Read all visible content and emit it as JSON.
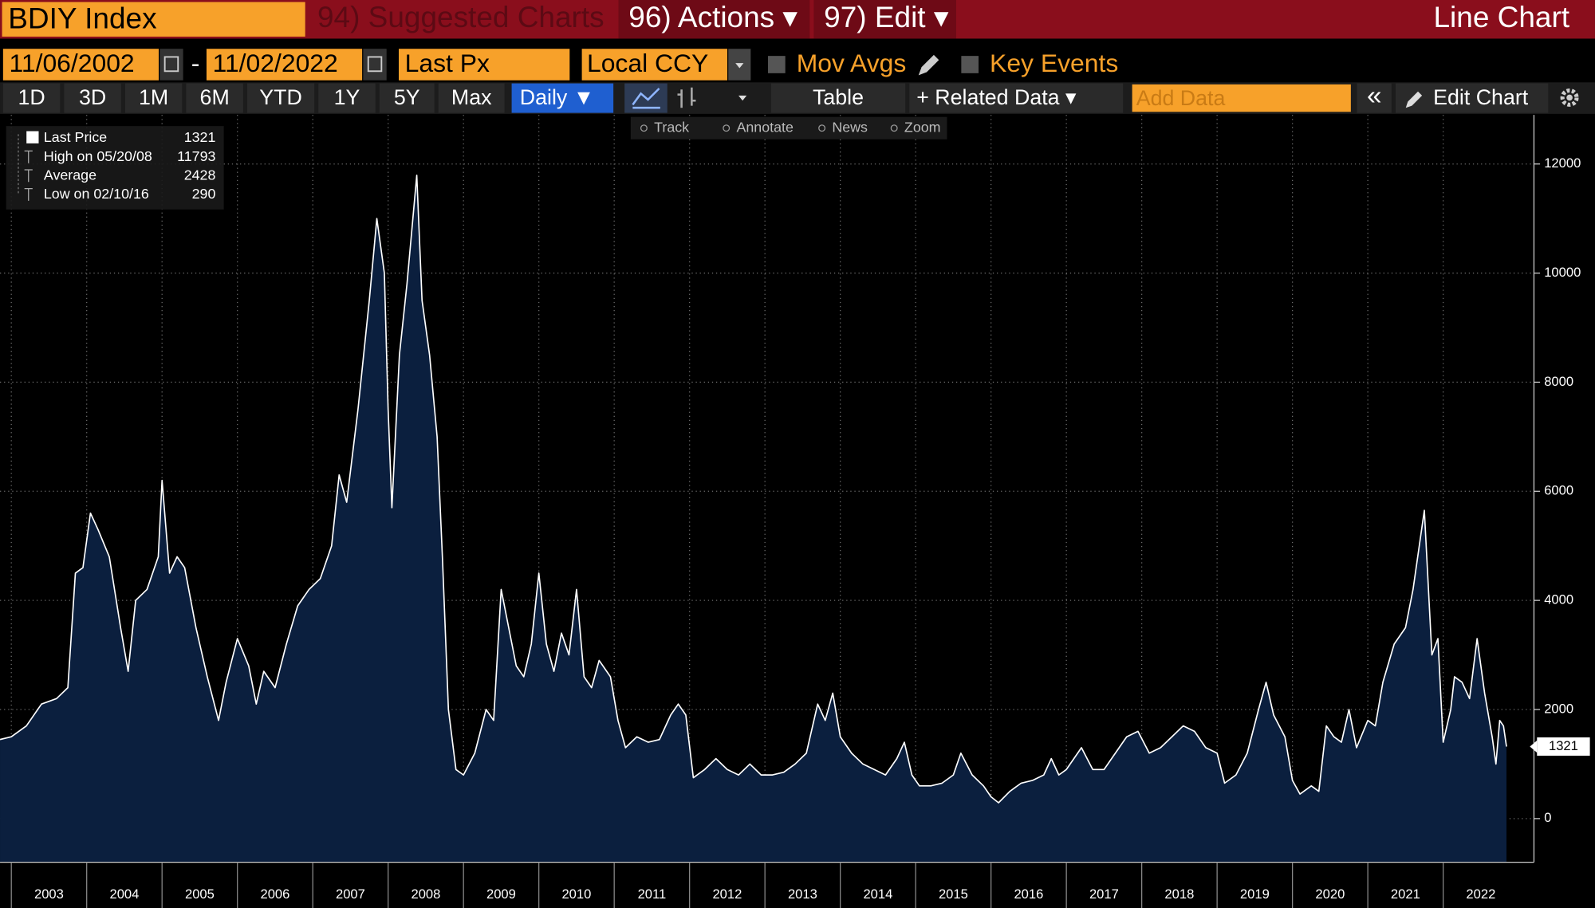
{
  "toolbar": {
    "ticker": "BDIY Index",
    "menu": [
      "94) Suggested Charts",
      "96) Actions ▾",
      "97) Edit ▾"
    ],
    "view_title": "Line Chart",
    "start_date": "11/06/2002",
    "separator": "-",
    "end_date": "11/02/2022",
    "field": "Last Px",
    "currency": "Local CCY",
    "mov_avgs": "Mov Avgs",
    "key_events": "Key Events",
    "periods": [
      "1D",
      "3D",
      "1M",
      "6M",
      "YTD",
      "1Y",
      "5Y",
      "Max"
    ],
    "frequency": "Daily ▼",
    "table": "Table",
    "related_data": "+ Related Data ▾",
    "add_data": "Add Data",
    "collapse": "«",
    "edit_chart": "Edit Chart",
    "tools": [
      "Track",
      "Annotate",
      "News",
      "Zoom"
    ]
  },
  "chart_data": {
    "type": "area",
    "legend": [
      {
        "label": "Last Price",
        "value": "1321"
      },
      {
        "label": "High on 05/20/08",
        "value": "11793"
      },
      {
        "label": "Average",
        "value": "2428"
      },
      {
        "label": "Low on 02/10/16",
        "value": "290"
      }
    ],
    "last_value_tag": "1321",
    "series": [
      {
        "name": "Last Price",
        "color": "#ffffff",
        "fill": "#0b1f3e",
        "x": [
          2002.85,
          2003.0,
          2003.2,
          2003.4,
          2003.6,
          2003.75,
          2003.85,
          2003.95,
          2004.05,
          2004.15,
          2004.3,
          2004.45,
          2004.55,
          2004.65,
          2004.8,
          2004.95,
          2005.0,
          2005.1,
          2005.2,
          2005.3,
          2005.45,
          2005.6,
          2005.75,
          2005.85,
          2006.0,
          2006.15,
          2006.25,
          2006.35,
          2006.5,
          2006.65,
          2006.8,
          2006.95,
          2007.1,
          2007.25,
          2007.35,
          2007.45,
          2007.6,
          2007.75,
          2007.85,
          2007.95,
          2008.0,
          2008.05,
          2008.15,
          2008.25,
          2008.38,
          2008.45,
          2008.55,
          2008.65,
          2008.72,
          2008.8,
          2008.9,
          2009.0,
          2009.15,
          2009.3,
          2009.4,
          2009.5,
          2009.6,
          2009.7,
          2009.8,
          2009.9,
          2010.0,
          2010.1,
          2010.2,
          2010.3,
          2010.4,
          2010.5,
          2010.6,
          2010.7,
          2010.8,
          2010.95,
          2011.05,
          2011.15,
          2011.3,
          2011.45,
          2011.6,
          2011.75,
          2011.85,
          2011.95,
          2012.05,
          2012.2,
          2012.35,
          2012.5,
          2012.65,
          2012.8,
          2012.95,
          2013.1,
          2013.25,
          2013.4,
          2013.55,
          2013.7,
          2013.8,
          2013.9,
          2014.0,
          2014.15,
          2014.3,
          2014.45,
          2014.6,
          2014.75,
          2014.85,
          2014.95,
          2015.05,
          2015.2,
          2015.35,
          2015.5,
          2015.6,
          2015.75,
          2015.9,
          2016.0,
          2016.1,
          2016.25,
          2016.4,
          2016.55,
          2016.7,
          2016.8,
          2016.9,
          2017.0,
          2017.2,
          2017.35,
          2017.5,
          2017.65,
          2017.8,
          2017.95,
          2018.1,
          2018.25,
          2018.4,
          2018.55,
          2018.7,
          2018.85,
          2019.0,
          2019.1,
          2019.25,
          2019.4,
          2019.55,
          2019.65,
          2019.75,
          2019.9,
          2020.0,
          2020.1,
          2020.25,
          2020.35,
          2020.45,
          2020.55,
          2020.65,
          2020.75,
          2020.85,
          2021.0,
          2021.1,
          2021.2,
          2021.35,
          2021.5,
          2021.6,
          2021.75,
          2021.85,
          2021.93,
          2022.0,
          2022.1,
          2022.15,
          2022.25,
          2022.35,
          2022.45,
          2022.55,
          2022.65,
          2022.7,
          2022.75,
          2022.8,
          2022.84
        ],
        "values": [
          1450,
          1500,
          1700,
          2100,
          2200,
          2400,
          4500,
          4600,
          5600,
          5300,
          4800,
          3500,
          2700,
          4000,
          4200,
          4800,
          6200,
          4500,
          4800,
          4600,
          3500,
          2600,
          1800,
          2500,
          3300,
          2800,
          2100,
          2700,
          2400,
          3200,
          3900,
          4200,
          4400,
          5000,
          6300,
          5800,
          7500,
          9500,
          11000,
          10000,
          7500,
          5700,
          8500,
          9800,
          11793,
          9500,
          8500,
          7000,
          4800,
          2000,
          900,
          800,
          1200,
          2000,
          1800,
          4200,
          3500,
          2800,
          2600,
          3200,
          4500,
          3200,
          2700,
          3400,
          3000,
          4200,
          2600,
          2400,
          2900,
          2600,
          1800,
          1300,
          1500,
          1400,
          1450,
          1900,
          2100,
          1900,
          750,
          900,
          1100,
          900,
          800,
          1000,
          800,
          800,
          850,
          1000,
          1200,
          2100,
          1800,
          2300,
          1500,
          1200,
          1000,
          900,
          800,
          1100,
          1400,
          800,
          600,
          600,
          650,
          800,
          1200,
          800,
          600,
          400,
          290,
          500,
          650,
          700,
          800,
          1100,
          800,
          900,
          1300,
          900,
          900,
          1200,
          1500,
          1600,
          1200,
          1300,
          1500,
          1700,
          1600,
          1300,
          1200,
          650,
          800,
          1200,
          2000,
          2500,
          1900,
          1500,
          700,
          450,
          600,
          500,
          1700,
          1500,
          1400,
          2000,
          1300,
          1800,
          1700,
          2500,
          3200,
          3500,
          4200,
          5650,
          3000,
          3300,
          1400,
          2000,
          2600,
          2500,
          2200,
          3300,
          2300,
          1500,
          1000,
          1800,
          1700,
          1321
        ]
      }
    ],
    "xlim": [
      2002.85,
      2022.84
    ],
    "xticks": [
      2003,
      2004,
      2005,
      2006,
      2007,
      2008,
      2009,
      2010,
      2011,
      2012,
      2013,
      2014,
      2015,
      2016,
      2017,
      2018,
      2019,
      2020,
      2021,
      2022
    ],
    "ylim": [
      -800,
      12900
    ],
    "yticks": [
      0,
      2000,
      4000,
      6000,
      8000,
      10000,
      12000
    ],
    "grid": true
  }
}
